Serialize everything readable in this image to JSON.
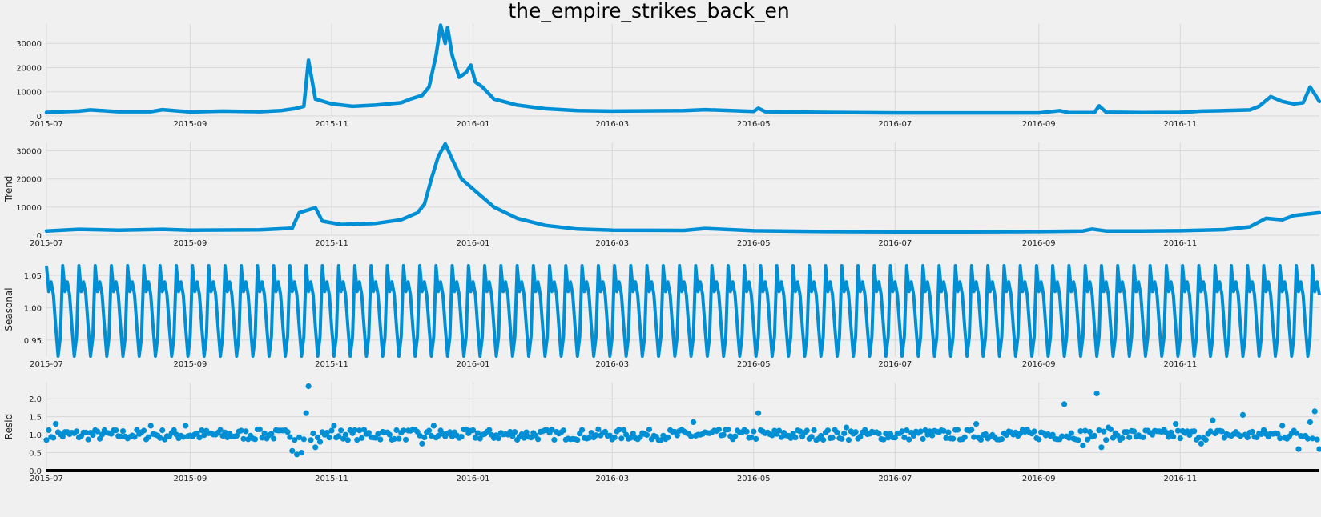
{
  "chart_data": {
    "title": "the_empire_strikes_back_en",
    "type": "line",
    "x_range": [
      "2015-07-01",
      "2016-12-31"
    ],
    "x_tick_labels": [
      "2015-07",
      "2015-09",
      "2015-11",
      "2016-01",
      "2016-03",
      "2016-05",
      "2016-07",
      "2016-09",
      "2016-11"
    ],
    "x_tick_dates": [
      "2015-07-01",
      "2015-09-01",
      "2015-11-01",
      "2016-01-01",
      "2016-03-01",
      "2016-05-01",
      "2016-07-01",
      "2016-09-01",
      "2016-11-01"
    ],
    "line_color": "#008fd5",
    "grid": true,
    "panels": [
      {
        "name": "observed",
        "ylabel": "",
        "type": "line",
        "ylim": [
          0,
          38000
        ],
        "yticks": [
          0,
          10000,
          20000,
          30000
        ],
        "ytick_labels": [
          "0",
          "10000",
          "20000",
          "30000"
        ],
        "points": [
          [
            "2015-07-01",
            1500
          ],
          [
            "2015-07-15",
            2000
          ],
          [
            "2015-07-20",
            2500
          ],
          [
            "2015-08-01",
            1800
          ],
          [
            "2015-08-15",
            1800
          ],
          [
            "2015-08-20",
            2600
          ],
          [
            "2015-09-01",
            1700
          ],
          [
            "2015-09-15",
            2000
          ],
          [
            "2015-10-01",
            1800
          ],
          [
            "2015-10-10",
            2200
          ],
          [
            "2015-10-16",
            3000
          ],
          [
            "2015-10-20",
            4000
          ],
          [
            "2015-10-22",
            23000
          ],
          [
            "2015-10-25",
            7000
          ],
          [
            "2015-11-01",
            5000
          ],
          [
            "2015-11-10",
            4000
          ],
          [
            "2015-11-20",
            4500
          ],
          [
            "2015-12-01",
            5500
          ],
          [
            "2015-12-05",
            7000
          ],
          [
            "2015-12-10",
            8500
          ],
          [
            "2015-12-13",
            12000
          ],
          [
            "2015-12-16",
            25000
          ],
          [
            "2015-12-18",
            37500
          ],
          [
            "2015-12-20",
            30000
          ],
          [
            "2015-12-21",
            36500
          ],
          [
            "2015-12-23",
            25000
          ],
          [
            "2015-12-26",
            16000
          ],
          [
            "2015-12-29",
            18000
          ],
          [
            "2015-12-31",
            21000
          ],
          [
            "2016-01-02",
            14000
          ],
          [
            "2016-01-05",
            12000
          ],
          [
            "2016-01-10",
            7000
          ],
          [
            "2016-01-20",
            4500
          ],
          [
            "2016-02-01",
            3000
          ],
          [
            "2016-02-15",
            2200
          ],
          [
            "2016-03-01",
            2000
          ],
          [
            "2016-04-01",
            2200
          ],
          [
            "2016-04-10",
            2600
          ],
          [
            "2016-05-01",
            1900
          ],
          [
            "2016-05-03",
            3200
          ],
          [
            "2016-05-06",
            1800
          ],
          [
            "2016-06-01",
            1500
          ],
          [
            "2016-07-01",
            1300
          ],
          [
            "2016-08-01",
            1300
          ],
          [
            "2016-09-01",
            1300
          ],
          [
            "2016-09-10",
            2200
          ],
          [
            "2016-09-14",
            1400
          ],
          [
            "2016-09-25",
            1400
          ],
          [
            "2016-09-27",
            4200
          ],
          [
            "2016-09-30",
            1600
          ],
          [
            "2016-10-15",
            1400
          ],
          [
            "2016-11-01",
            1500
          ],
          [
            "2016-11-10",
            2000
          ],
          [
            "2016-11-20",
            2200
          ],
          [
            "2016-12-01",
            2500
          ],
          [
            "2016-12-05",
            4000
          ],
          [
            "2016-12-10",
            8000
          ],
          [
            "2016-12-15",
            6000
          ],
          [
            "2016-12-20",
            5000
          ],
          [
            "2016-12-24",
            5500
          ],
          [
            "2016-12-27",
            12000
          ],
          [
            "2016-12-31",
            6000
          ]
        ]
      },
      {
        "name": "trend",
        "ylabel": "Trend",
        "type": "line",
        "ylim": [
          0,
          33000
        ],
        "yticks": [
          0,
          10000,
          20000,
          30000
        ],
        "ytick_labels": [
          "0",
          "10000",
          "20000",
          "30000"
        ],
        "points": [
          [
            "2015-07-01",
            1500
          ],
          [
            "2015-07-15",
            2100
          ],
          [
            "2015-08-01",
            1800
          ],
          [
            "2015-08-20",
            2100
          ],
          [
            "2015-09-01",
            1800
          ],
          [
            "2015-10-01",
            1900
          ],
          [
            "2015-10-15",
            2500
          ],
          [
            "2015-10-18",
            8000
          ],
          [
            "2015-10-25",
            9800
          ],
          [
            "2015-10-28",
            5000
          ],
          [
            "2015-11-05",
            3800
          ],
          [
            "2015-11-20",
            4200
          ],
          [
            "2015-12-01",
            5500
          ],
          [
            "2015-12-08",
            8000
          ],
          [
            "2015-12-11",
            11000
          ],
          [
            "2015-12-14",
            20000
          ],
          [
            "2015-12-17",
            28000
          ],
          [
            "2015-12-20",
            32500
          ],
          [
            "2015-12-23",
            27000
          ],
          [
            "2015-12-27",
            20000
          ],
          [
            "2016-01-03",
            15000
          ],
          [
            "2016-01-10",
            10000
          ],
          [
            "2016-01-20",
            6000
          ],
          [
            "2016-02-01",
            3500
          ],
          [
            "2016-02-15",
            2200
          ],
          [
            "2016-03-01",
            1800
          ],
          [
            "2016-04-01",
            1700
          ],
          [
            "2016-04-10",
            2400
          ],
          [
            "2016-05-01",
            1600
          ],
          [
            "2016-06-01",
            1300
          ],
          [
            "2016-07-01",
            1200
          ],
          [
            "2016-08-01",
            1200
          ],
          [
            "2016-09-01",
            1300
          ],
          [
            "2016-09-20",
            1500
          ],
          [
            "2016-09-24",
            2200
          ],
          [
            "2016-09-30",
            1500
          ],
          [
            "2016-10-15",
            1500
          ],
          [
            "2016-11-01",
            1600
          ],
          [
            "2016-11-20",
            2000
          ],
          [
            "2016-12-01",
            3000
          ],
          [
            "2016-12-08",
            6000
          ],
          [
            "2016-12-15",
            5500
          ],
          [
            "2016-12-20",
            7000
          ],
          [
            "2016-12-31",
            8000
          ]
        ]
      },
      {
        "name": "seasonal",
        "ylabel": "Seasonal",
        "type": "line",
        "ylim": [
          0.925,
          1.07
        ],
        "yticks": [
          0.95,
          1.0,
          1.05
        ],
        "ytick_labels": [
          "0.95",
          "1.00",
          "1.05"
        ],
        "period_days": 7,
        "cycle_values": [
          1.065,
          1.025,
          1.04,
          1.02,
          0.97,
          0.925,
          0.955
        ]
      },
      {
        "name": "resid",
        "ylabel": "Resid",
        "type": "scatter",
        "ylim": [
          0.0,
          2.45
        ],
        "yticks": [
          0.0,
          0.5,
          1.0,
          1.5,
          2.0
        ],
        "ytick_labels": [
          "0.0",
          "0.5",
          "1.0",
          "1.5",
          "2.0"
        ],
        "points": [
          [
            "2015-07-05",
            1.3
          ],
          [
            "2015-08-15",
            1.25
          ],
          [
            "2015-08-30",
            1.25
          ],
          [
            "2015-10-01",
            1.15
          ],
          [
            "2015-10-15",
            0.55
          ],
          [
            "2015-10-17",
            0.45
          ],
          [
            "2015-10-19",
            0.5
          ],
          [
            "2015-10-21",
            1.6
          ],
          [
            "2015-10-22",
            2.35
          ],
          [
            "2015-10-25",
            0.65
          ],
          [
            "2015-10-27",
            0.8
          ],
          [
            "2015-11-02",
            1.25
          ],
          [
            "2015-12-10",
            0.75
          ],
          [
            "2015-12-15",
            1.25
          ],
          [
            "2016-04-05",
            1.35
          ],
          [
            "2016-05-03",
            1.6
          ],
          [
            "2016-06-10",
            1.2
          ],
          [
            "2016-08-05",
            1.3
          ],
          [
            "2016-09-12",
            1.85
          ],
          [
            "2016-09-20",
            0.7
          ],
          [
            "2016-09-26",
            2.15
          ],
          [
            "2016-09-28",
            0.65
          ],
          [
            "2016-10-01",
            1.2
          ],
          [
            "2016-10-30",
            1.3
          ],
          [
            "2016-11-10",
            0.75
          ],
          [
            "2016-11-15",
            1.4
          ],
          [
            "2016-11-28",
            1.55
          ],
          [
            "2016-12-15",
            1.25
          ],
          [
            "2016-12-22",
            0.6
          ],
          [
            "2016-12-27",
            1.35
          ],
          [
            "2016-12-29",
            1.65
          ],
          [
            "2016-12-31",
            0.6
          ]
        ],
        "baseline_note": "all remaining days scatter closely around 1.0"
      }
    ]
  }
}
